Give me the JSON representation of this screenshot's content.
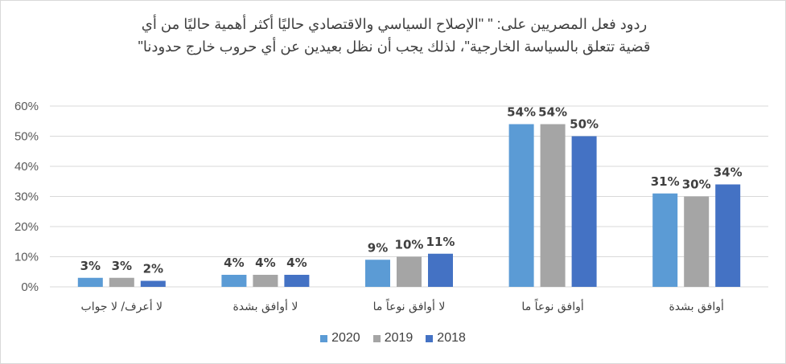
{
  "chart_data": {
    "type": "bar",
    "title_lines": [
      "ردود فعل المصريين على: \" \"الإصلاح السياسي والاقتصادي حاليًا أكثر أهمية حاليًا من أي",
      "قضية تتعلق بالسياسة الخارجية\"، لذلك يجب أن نظل بعيدين عن أي حروب خارج حدودنا\""
    ],
    "categories": [
      "لا أعرف/ لا جواب",
      "لا أوافق بشدة",
      "لا أوافق نوعاً ما",
      "أوافق نوعاً ما",
      "أوافق بشدة"
    ],
    "series": [
      {
        "name": "2020",
        "color": "#5B9BD5",
        "values": [
          3,
          4,
          9,
          54,
          31
        ]
      },
      {
        "name": "2019",
        "color": "#A5A5A5",
        "values": [
          3,
          4,
          10,
          54,
          30
        ]
      },
      {
        "name": "2018",
        "color": "#4472C4",
        "values": [
          2,
          4,
          11,
          50,
          34
        ]
      }
    ],
    "yticks": [
      0,
      10,
      20,
      30,
      40,
      50,
      60
    ],
    "ylim": [
      0,
      60
    ],
    "yformat": "%",
    "grid": true,
    "legend_position": "bottom"
  }
}
